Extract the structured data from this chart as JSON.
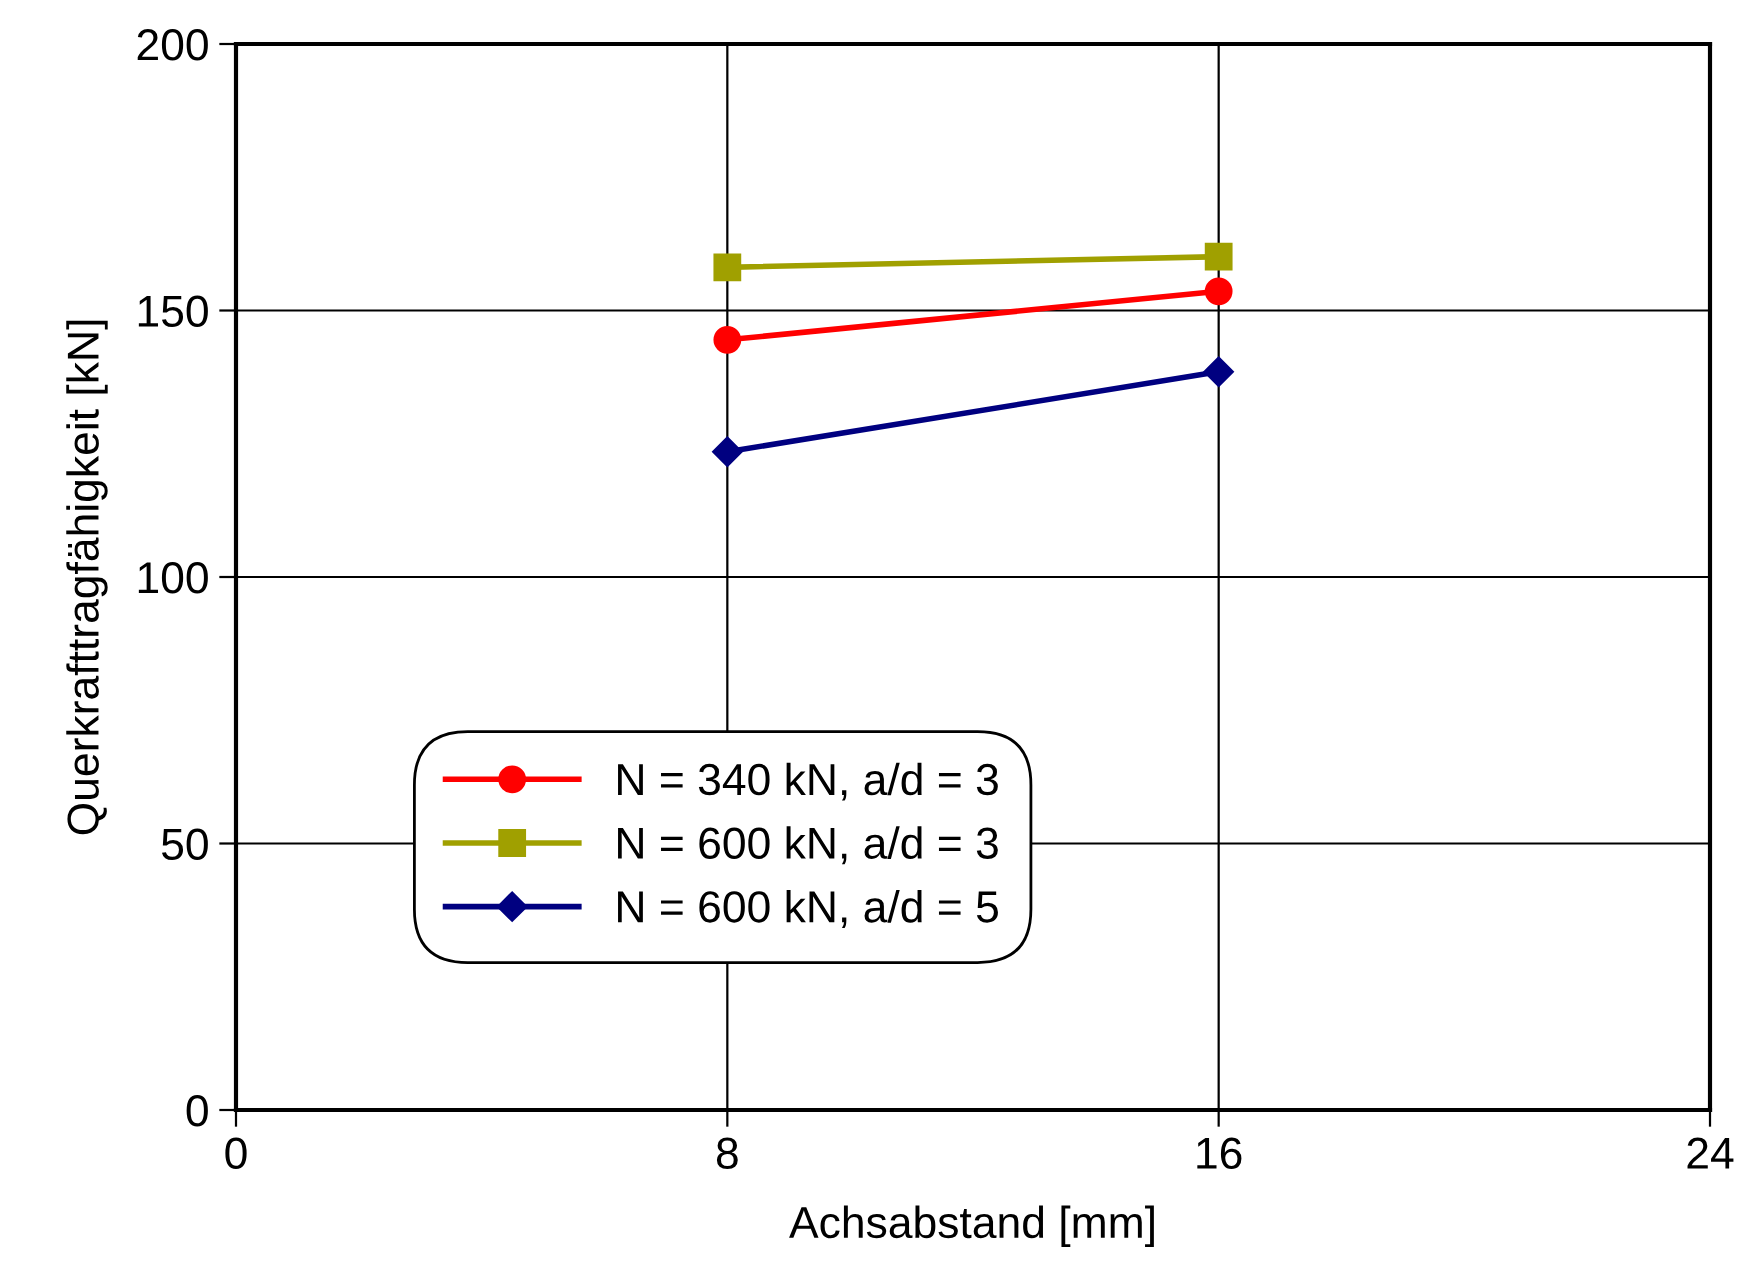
{
  "chart_data": {
    "type": "line",
    "xlabel": "Achsabstand [mm]",
    "ylabel": "Querkrafttragfähigkeit [kN]",
    "x": [
      8,
      16
    ],
    "xlim": [
      0,
      24
    ],
    "xticks": [
      0,
      8,
      16,
      24
    ],
    "ylim": [
      0,
      200
    ],
    "yticks": [
      0,
      50,
      100,
      150,
      200
    ],
    "grid": true,
    "legend": "bottom left",
    "series": [
      {
        "name": "N = 340 kN, a/d = 3",
        "color": "#ff0000",
        "marker": "circle",
        "values": [
          144.5,
          153.6
        ]
      },
      {
        "name": "N = 600 kN, a/d = 3",
        "color": "#a0a000",
        "marker": "square",
        "values": [
          158.1,
          160.1
        ]
      },
      {
        "name": "N = 600 kN, a/d = 5",
        "color": "#000080",
        "marker": "diamond",
        "values": [
          123.5,
          138.5
        ]
      }
    ]
  }
}
